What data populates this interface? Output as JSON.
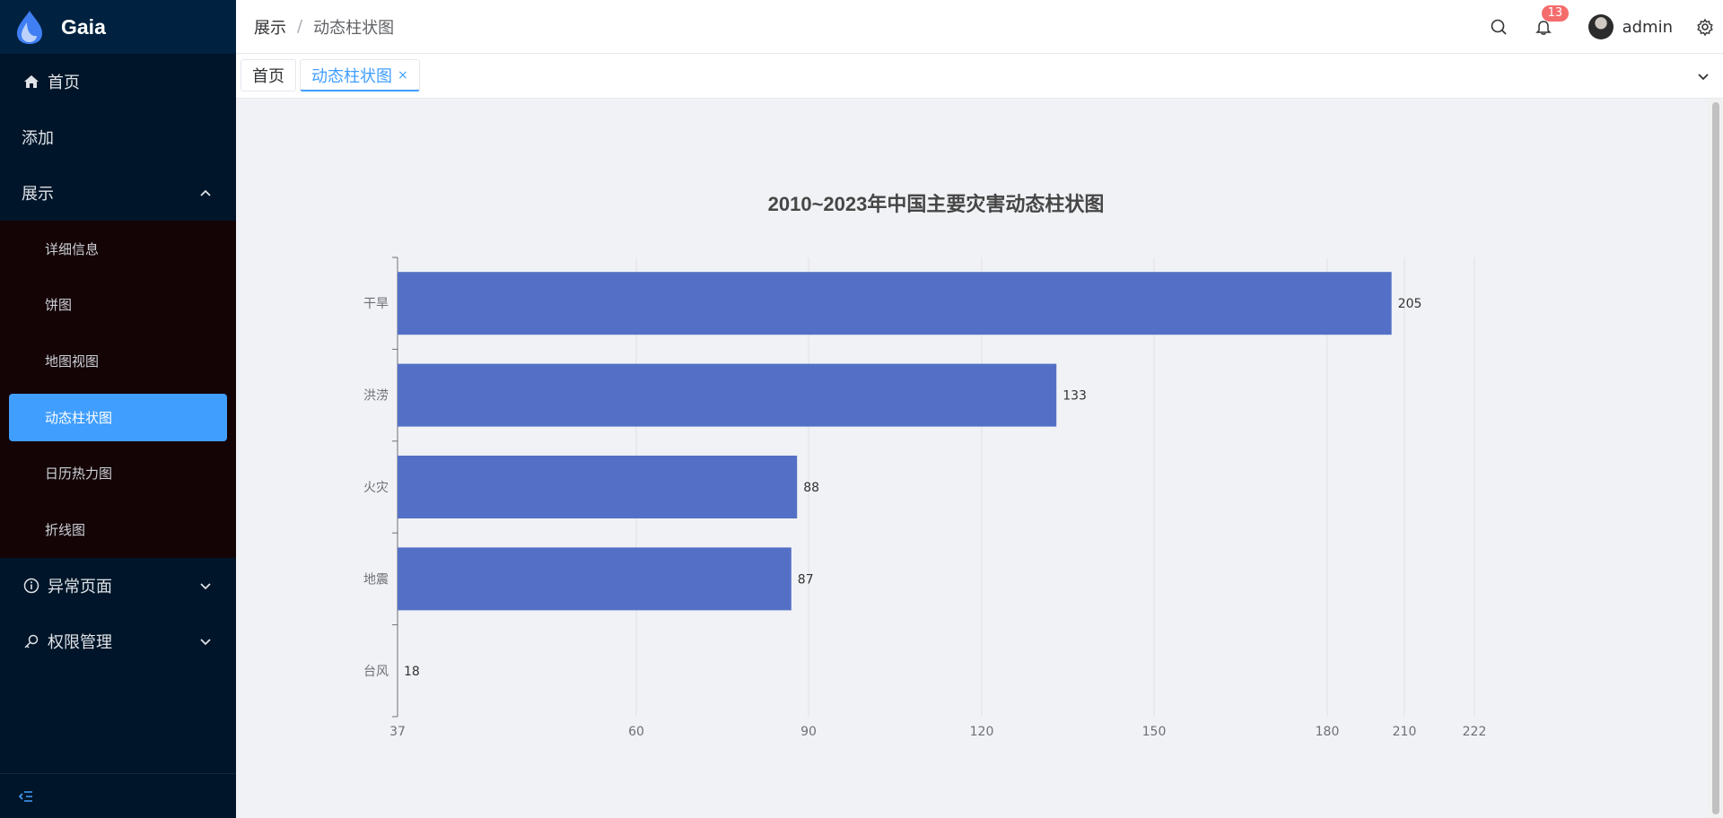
{
  "app": {
    "name": "Gaia"
  },
  "sidebar": {
    "items": [
      {
        "label": "首页",
        "icon": "home-icon"
      },
      {
        "label": "添加"
      },
      {
        "label": "展示",
        "expanded": true,
        "children": [
          {
            "label": "详细信息"
          },
          {
            "label": "饼图"
          },
          {
            "label": "地图视图"
          },
          {
            "label": "动态柱状图",
            "active": true
          },
          {
            "label": "日历热力图"
          },
          {
            "label": "折线图"
          }
        ]
      },
      {
        "label": "异常页面",
        "icon": "info-icon"
      },
      {
        "label": "权限管理",
        "icon": "key-icon"
      }
    ],
    "active_color": "#409eff"
  },
  "header": {
    "breadcrumb": [
      "展示",
      "动态柱状图"
    ],
    "breadcrumb_sep": "/",
    "notification_count": "13",
    "username": "admin"
  },
  "tabs": [
    {
      "label": "首页",
      "active": false
    },
    {
      "label": "动态柱状图",
      "active": true,
      "close": "×"
    }
  ],
  "chart_data": {
    "type": "bar",
    "orientation": "horizontal",
    "title": "2010~2023年中国主要灾害动态柱状图",
    "categories": [
      "干旱",
      "洪涝",
      "火灾",
      "地震",
      "台风"
    ],
    "values": [
      205,
      133,
      88,
      87,
      18
    ],
    "x_ticks": [
      "37",
      "60",
      "90",
      "120",
      "150",
      "180",
      "210",
      "222"
    ],
    "bar_color": "#5470c6",
    "grid": true
  }
}
